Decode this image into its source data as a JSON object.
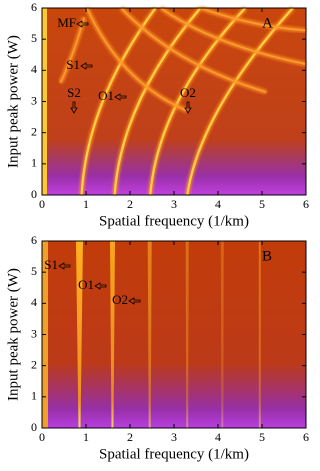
{
  "chart_data": [
    {
      "type": "heatmap",
      "panel_label": "A",
      "xlabel": "Spatial frequency (1/km)",
      "ylabel": "Input peak power (W)",
      "xlim": [
        0,
        6
      ],
      "ylim": [
        0,
        6
      ],
      "xticks": [
        0,
        1,
        2,
        3,
        4,
        5,
        6
      ],
      "yticks": [
        0,
        1,
        2,
        3,
        4,
        5,
        6
      ],
      "annotations": [
        "MF",
        "S1",
        "S2",
        "O1",
        "O2"
      ]
    },
    {
      "type": "heatmap",
      "panel_label": "B",
      "xlabel": "Spatial frequency (1/km)",
      "ylabel": "Input peak power (W)",
      "xlim": [
        0,
        6
      ],
      "ylim": [
        0,
        6
      ],
      "xticks": [
        0,
        1,
        2,
        3,
        4,
        5,
        6
      ],
      "yticks": [
        0,
        1,
        2,
        3,
        4,
        5,
        6
      ],
      "annotations": [
        "S1",
        "O1",
        "O2"
      ]
    }
  ]
}
